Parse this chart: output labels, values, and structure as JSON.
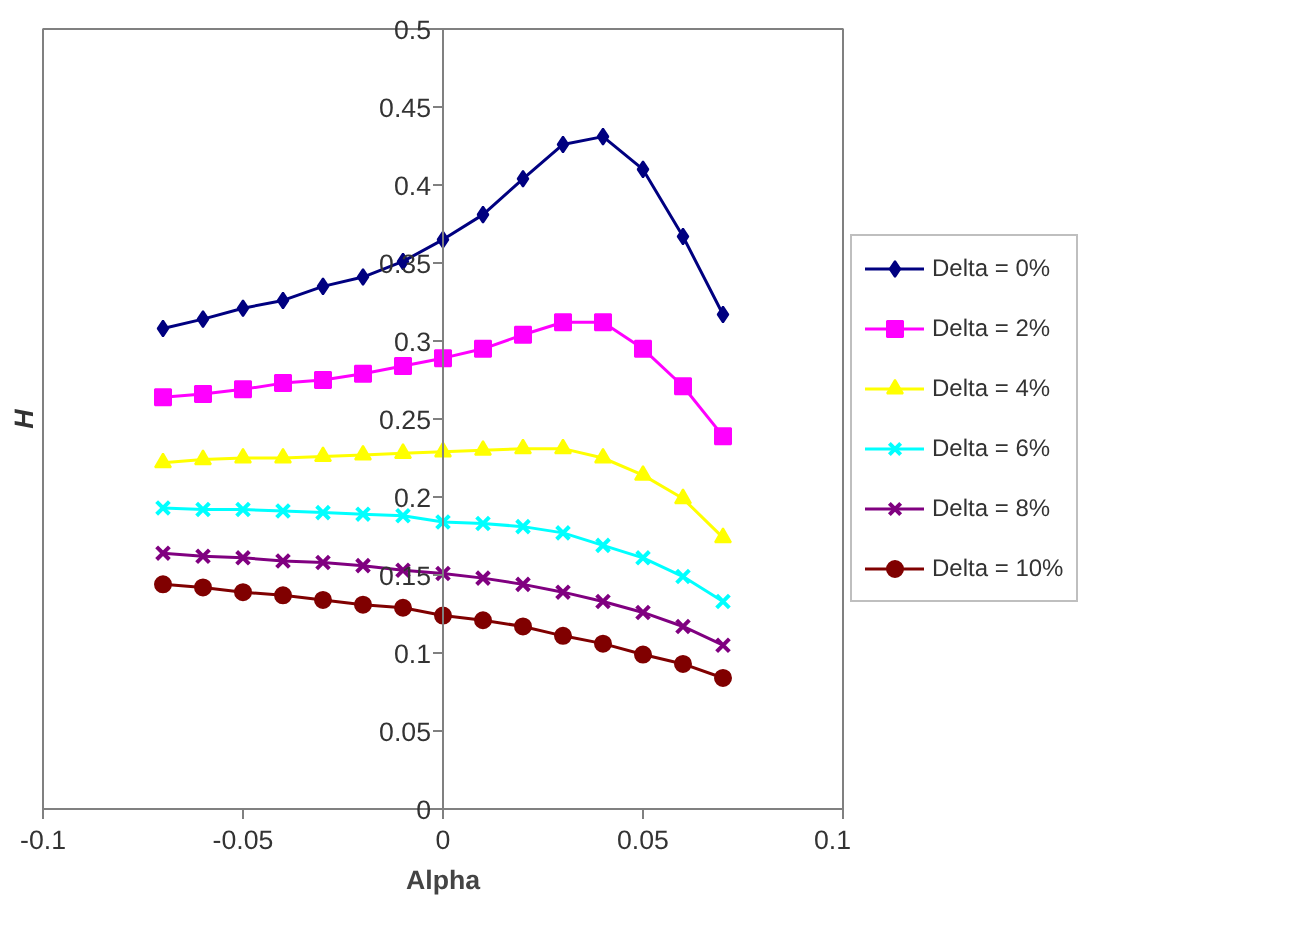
{
  "chart_data": {
    "type": "line",
    "xlabel": "Alpha",
    "ylabel": "H",
    "x": [
      -0.07,
      -0.06,
      -0.05,
      -0.04,
      -0.03,
      -0.02,
      -0.01,
      0,
      0.01,
      0.02,
      0.03,
      0.04,
      0.05,
      0.06,
      0.07
    ],
    "series": [
      {
        "name": "Delta = 0%",
        "color": "#000080",
        "marker": "diamond",
        "values": [
          0.308,
          0.314,
          0.321,
          0.326,
          0.335,
          0.341,
          0.351,
          0.365,
          0.381,
          0.404,
          0.426,
          0.431,
          0.41,
          0.367,
          0.317
        ]
      },
      {
        "name": "Delta = 2%",
        "color": "#ff00ff",
        "marker": "square",
        "values": [
          0.264,
          0.266,
          0.269,
          0.273,
          0.275,
          0.279,
          0.284,
          0.289,
          0.295,
          0.304,
          0.312,
          0.312,
          0.295,
          0.271,
          0.239
        ]
      },
      {
        "name": "Delta = 4%",
        "color": "#ffff00",
        "marker": "triangle",
        "values": [
          0.222,
          0.224,
          0.225,
          0.225,
          0.226,
          0.227,
          0.228,
          0.229,
          0.23,
          0.231,
          0.231,
          0.225,
          0.214,
          0.199,
          0.174
        ]
      },
      {
        "name": "Delta = 6%",
        "color": "#00ffff",
        "marker": "cross",
        "values": [
          0.193,
          0.192,
          0.192,
          0.191,
          0.19,
          0.189,
          0.188,
          0.184,
          0.183,
          0.181,
          0.177,
          0.169,
          0.161,
          0.149,
          0.133
        ]
      },
      {
        "name": "Delta = 8%",
        "color": "#800080",
        "marker": "cross",
        "values": [
          0.164,
          0.162,
          0.161,
          0.159,
          0.158,
          0.156,
          0.153,
          0.151,
          0.148,
          0.144,
          0.139,
          0.133,
          0.126,
          0.117,
          0.105
        ]
      },
      {
        "name": "Delta = 10%",
        "color": "#800000",
        "marker": "circle",
        "values": [
          0.144,
          0.142,
          0.139,
          0.137,
          0.134,
          0.131,
          0.129,
          0.124,
          0.121,
          0.117,
          0.111,
          0.106,
          0.099,
          0.093,
          0.084
        ]
      }
    ],
    "xlim": [
      -0.1,
      0.1
    ],
    "xticks": [
      -0.1,
      -0.05,
      0,
      0.05,
      0.1
    ],
    "ylim": [
      0,
      0.5
    ],
    "yticks": [
      0,
      0.05,
      0.1,
      0.15,
      0.2,
      0.25,
      0.3,
      0.35,
      0.4,
      0.45,
      0.5
    ],
    "grid": false,
    "legend": "right",
    "line_style": "solid"
  }
}
